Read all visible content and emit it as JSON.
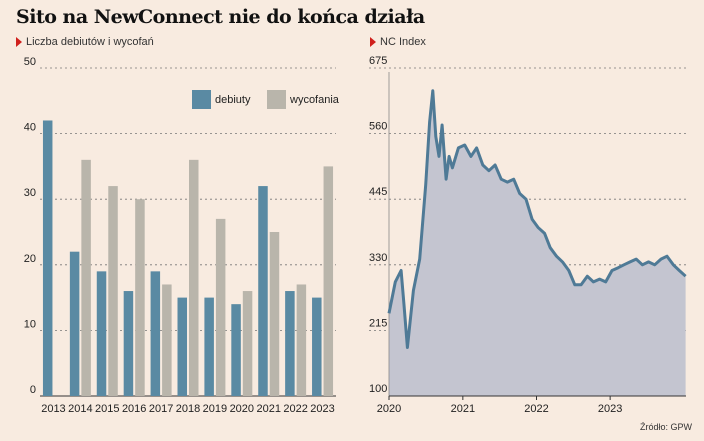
{
  "title": "Sito na NewConnect nie do końca działa",
  "source": "Źródło: GPW",
  "colors": {
    "debiuty": "#5a8aa3",
    "wycofania": "#b9b5ab",
    "line": "#4f7a96",
    "area": "#c4c5d0",
    "background": "#f8ebe0"
  },
  "chart_data": [
    {
      "type": "bar",
      "subtitle": "Liczba debiutów i wycofań",
      "categories": [
        "2013",
        "2014",
        "2015",
        "2016",
        "2017",
        "2018",
        "2019",
        "2020",
        "2021",
        "2022",
        "2023"
      ],
      "series": [
        {
          "name": "debiuty",
          "values": [
            42,
            22,
            19,
            16,
            19,
            15,
            15,
            14,
            32,
            16,
            15
          ]
        },
        {
          "name": "wycofania",
          "values": [
            0,
            36,
            32,
            30,
            17,
            36,
            27,
            16,
            25,
            17,
            35
          ]
        }
      ],
      "ylim": [
        0,
        50
      ],
      "yticks": [
        0,
        10,
        20,
        30,
        40,
        50
      ],
      "grid": true,
      "legend": "top-right"
    },
    {
      "type": "area",
      "subtitle": "NC Index",
      "series": [
        {
          "x": [
            "2020-01-01",
            "2020-02-01",
            "2020-03-01",
            "2020-03-15",
            "2020-04-01",
            "2020-05-01",
            "2020-06-01",
            "2020-07-01",
            "2020-07-20",
            "2020-08-05",
            "2020-08-20",
            "2020-09-05",
            "2020-09-20",
            "2020-10-10",
            "2020-10-25",
            "2020-11-10",
            "2020-12-10",
            "2021-01-10",
            "2021-02-10",
            "2021-03-10",
            "2021-04-10",
            "2021-05-10",
            "2021-06-10",
            "2021-07-10",
            "2021-08-10",
            "2021-09-10",
            "2021-10-10",
            "2021-11-10",
            "2021-12-10",
            "2022-01-10",
            "2022-02-10",
            "2022-03-10",
            "2022-04-10",
            "2022-05-10",
            "2022-06-10",
            "2022-07-10",
            "2022-08-10",
            "2022-09-10",
            "2022-10-10",
            "2022-11-10",
            "2022-12-10",
            "2023-01-10",
            "2023-02-10",
            "2023-03-10",
            "2023-04-10",
            "2023-05-10",
            "2023-06-10",
            "2023-07-10",
            "2023-08-10",
            "2023-09-10",
            "2023-10-10",
            "2023-11-10",
            "2023-12-10",
            "2024-01-10"
          ],
          "y": [
            245,
            300,
            320,
            262,
            185,
            285,
            340,
            470,
            580,
            635,
            555,
            520,
            575,
            480,
            520,
            500,
            535,
            540,
            520,
            535,
            505,
            495,
            505,
            480,
            475,
            480,
            455,
            445,
            410,
            395,
            385,
            360,
            345,
            335,
            320,
            295,
            295,
            310,
            300,
            305,
            300,
            320,
            325,
            330,
            335,
            340,
            330,
            335,
            330,
            340,
            345,
            330,
            320,
            310
          ]
        }
      ],
      "xticks": [
        "2020",
        "2021",
        "2022",
        "2023"
      ],
      "ylim": [
        100,
        675
      ],
      "yticks": [
        100,
        215,
        330,
        445,
        560,
        675
      ],
      "grid": true
    }
  ]
}
